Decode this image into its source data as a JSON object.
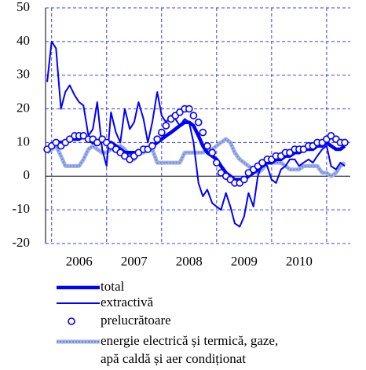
{
  "chart_data": {
    "type": "line",
    "x": [
      2005.92,
      2006.0,
      2006.08,
      2006.17,
      2006.25,
      2006.33,
      2006.42,
      2006.5,
      2006.58,
      2006.67,
      2006.75,
      2006.83,
      2006.92,
      2007.0,
      2007.08,
      2007.17,
      2007.25,
      2007.33,
      2007.42,
      2007.5,
      2007.58,
      2007.67,
      2007.75,
      2007.83,
      2007.92,
      2008.0,
      2008.08,
      2008.17,
      2008.25,
      2008.33,
      2008.42,
      2008.5,
      2008.58,
      2008.67,
      2008.75,
      2008.83,
      2008.92,
      2009.0,
      2009.08,
      2009.17,
      2009.25,
      2009.33,
      2009.42,
      2009.5,
      2009.58,
      2009.67,
      2009.75,
      2009.83,
      2009.92,
      2010.0,
      2010.08,
      2010.17,
      2010.25,
      2010.33,
      2010.42,
      2010.5,
      2010.58,
      2010.67,
      2010.75,
      2010.83,
      2010.92,
      2011.0,
      2011.08,
      2011.17,
      2011.25,
      2011.33
    ],
    "series": [
      {
        "name": "total",
        "color": "#0000ff",
        "style": "thick",
        "values": [
          8,
          9,
          10,
          10,
          10,
          11,
          11,
          11,
          12,
          11,
          10,
          10,
          11,
          10,
          10,
          9,
          8,
          7,
          7,
          7,
          7,
          8,
          8,
          9,
          10,
          11,
          12,
          13,
          14,
          15,
          16,
          16,
          15,
          12,
          9,
          7,
          6,
          5,
          3,
          1,
          0,
          -1,
          -1,
          -1,
          0,
          1,
          2,
          3,
          4,
          4,
          5,
          5,
          6,
          6,
          7,
          7,
          8,
          8,
          8,
          9,
          9,
          10,
          9,
          8,
          8,
          9
        ]
      },
      {
        "name": "extractivă",
        "color": "#0000ff",
        "style": "thin",
        "values": [
          28,
          40,
          38,
          20,
          25,
          27,
          24,
          22,
          21,
          12,
          14,
          22,
          8,
          3,
          19,
          13,
          10,
          20,
          14,
          16,
          22,
          17,
          10,
          16,
          25,
          18,
          16,
          18,
          17,
          15,
          17,
          16,
          10,
          -2,
          -6,
          -4,
          -8,
          -9,
          -10,
          -5,
          -9,
          -14,
          -15,
          -12,
          -5,
          -9,
          0,
          4,
          3,
          -1,
          -2,
          2,
          3,
          5,
          5,
          3,
          4,
          5,
          4,
          6,
          8,
          9,
          3,
          2,
          4,
          3
        ]
      },
      {
        "name": "prelucrătoare",
        "color": "#0000ff",
        "style": "markers",
        "values": [
          8,
          9,
          10,
          9,
          10,
          11,
          12,
          12,
          12,
          11,
          11,
          10,
          11,
          10,
          9,
          8,
          7,
          6,
          5,
          6,
          7,
          8,
          8,
          9,
          11,
          13,
          15,
          17,
          18,
          19,
          20,
          20,
          18,
          16,
          13,
          9,
          7,
          4,
          1,
          0,
          -1,
          -2,
          -2,
          -1,
          1,
          2,
          3,
          4,
          5,
          5,
          6,
          6,
          7,
          7,
          8,
          8,
          8,
          9,
          9,
          10,
          10,
          11,
          12,
          11,
          10,
          10
        ]
      },
      {
        "name": "energie electrică și termică, gaze,\napă caldă și aer condiționat",
        "color": "#9fb2ea",
        "style": "hatched",
        "values": [
          7,
          8,
          9,
          6,
          3,
          3,
          3,
          3,
          5,
          8,
          9,
          8,
          7,
          7,
          8,
          8,
          9,
          8,
          6,
          5,
          7,
          7,
          8,
          8,
          4,
          4,
          4,
          4,
          4,
          4,
          7,
          7,
          7,
          7,
          7,
          8,
          8,
          9,
          10,
          11,
          10,
          7,
          5,
          4,
          3,
          2,
          1,
          2,
          4,
          4,
          4,
          4,
          3,
          2,
          2,
          2,
          3,
          3,
          3,
          3,
          1,
          1,
          0,
          1,
          3,
          4
        ]
      }
    ],
    "xlim": [
      2005.89,
      2011.43
    ],
    "xgrid": [
      2006,
      2007,
      2008,
      2009,
      2010,
      2011
    ],
    "xticks": [
      {
        "value": 2006.5,
        "label": "2006"
      },
      {
        "value": 2007.5,
        "label": "2007"
      },
      {
        "value": 2008.5,
        "label": "2008"
      },
      {
        "value": 2009.5,
        "label": "2009"
      },
      {
        "value": 2010.5,
        "label": "2010"
      }
    ],
    "ylim": [
      -20,
      50
    ],
    "yticks": [
      -20,
      -10,
      0,
      10,
      20,
      30,
      40,
      50
    ],
    "grid": true
  }
}
